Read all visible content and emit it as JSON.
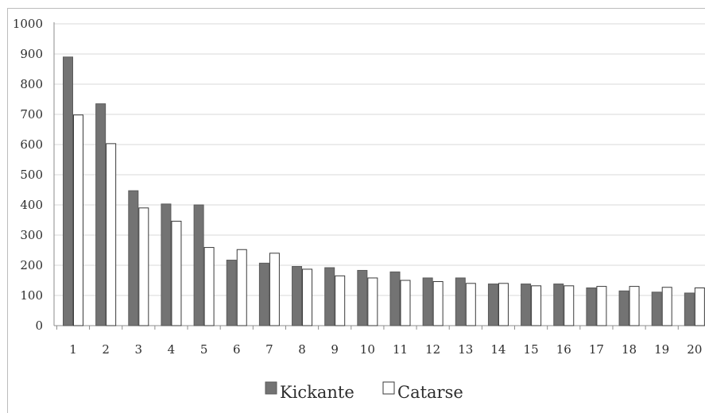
{
  "chart_data": {
    "type": "bar",
    "title": "",
    "xlabel": "",
    "ylabel": "",
    "ylim": [
      0,
      1000
    ],
    "yticks": [
      0,
      100,
      200,
      300,
      400,
      500,
      600,
      700,
      800,
      900,
      1000
    ],
    "categories": [
      "1",
      "2",
      "3",
      "4",
      "5",
      "6",
      "7",
      "8",
      "9",
      "10",
      "11",
      "12",
      "13",
      "14",
      "15",
      "16",
      "17",
      "18",
      "19",
      "20"
    ],
    "series": [
      {
        "name": "Kickante",
        "color": "#737373",
        "values": [
          890,
          735,
          447,
          403,
          400,
          217,
          207,
          196,
          192,
          183,
          178,
          158,
          158,
          138,
          138,
          138,
          125,
          115,
          111,
          108
        ]
      },
      {
        "name": "Catarse",
        "color": "#ffffff",
        "values": [
          698,
          603,
          390,
          346,
          259,
          252,
          240,
          187,
          165,
          158,
          150,
          146,
          140,
          140,
          132,
          132,
          130,
          130,
          127,
          125
        ]
      }
    ],
    "grid": true,
    "legend_position": "bottom"
  }
}
